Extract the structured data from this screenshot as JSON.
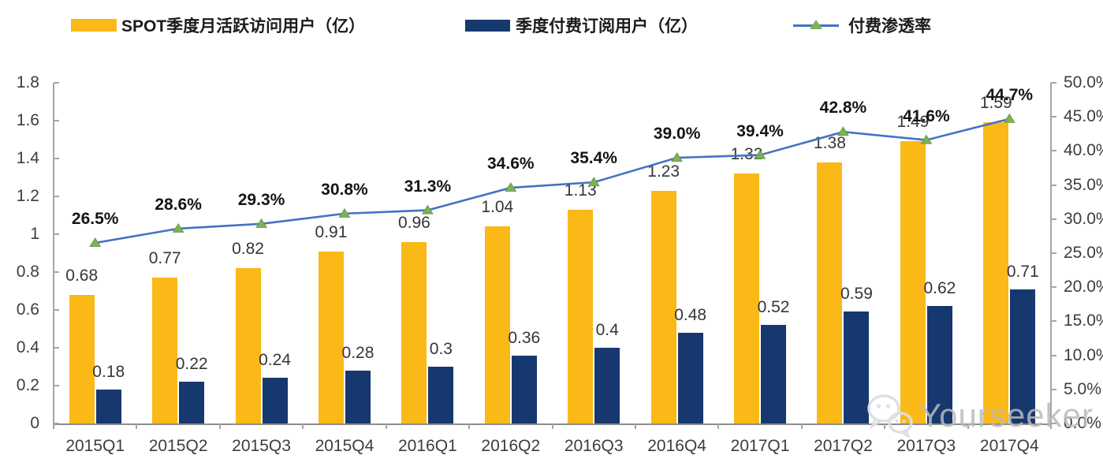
{
  "legend": {
    "items": [
      {
        "label": "SPOT季度月活跃访问用户（亿）",
        "type": "bar",
        "color": "#FBB917"
      },
      {
        "label": "季度付费订阅用户（亿）",
        "type": "bar",
        "color": "#17386E"
      },
      {
        "label": "付费渗透率",
        "type": "line",
        "color": "#4472C4",
        "marker_color": "#7FB254"
      }
    ]
  },
  "chart_data": {
    "type": "bar",
    "subtype": "combo-bar-line",
    "categories": [
      "2015Q1",
      "2015Q2",
      "2015Q3",
      "2015Q4",
      "2016Q1",
      "2016Q2",
      "2016Q3",
      "2016Q4",
      "2017Q1",
      "2017Q2",
      "2017Q3",
      "2017Q4"
    ],
    "series": [
      {
        "name": "SPOT季度月活跃访问用户（亿）",
        "type": "bar",
        "axis": "left",
        "color": "#FBB917",
        "values": [
          0.68,
          0.77,
          0.82,
          0.91,
          0.96,
          1.04,
          1.13,
          1.23,
          1.32,
          1.38,
          1.49,
          1.59
        ],
        "labels": [
          "0.68",
          "0.77",
          "0.82",
          "0.91",
          "0.96",
          "1.04",
          "1.13",
          "1.23",
          "1.32",
          "1.38",
          "1.49",
          "1.59"
        ]
      },
      {
        "name": "季度付费订阅用户（亿）",
        "type": "bar",
        "axis": "left",
        "color": "#17386E",
        "values": [
          0.18,
          0.22,
          0.24,
          0.28,
          0.3,
          0.36,
          0.4,
          0.48,
          0.52,
          0.59,
          0.62,
          0.71
        ],
        "labels": [
          "0.18",
          "0.22",
          "0.24",
          "0.28",
          "0.3",
          "0.36",
          "0.4",
          "0.48",
          "0.52",
          "0.59",
          "0.62",
          "0.71"
        ]
      },
      {
        "name": "付费渗透率",
        "type": "line",
        "axis": "right",
        "color": "#4472C4",
        "marker_color": "#7FB254",
        "values": [
          26.5,
          28.6,
          29.3,
          30.8,
          31.3,
          34.6,
          35.4,
          39.0,
          39.4,
          42.8,
          41.6,
          44.7
        ],
        "labels": [
          "26.5%",
          "28.6%",
          "29.3%",
          "30.8%",
          "31.3%",
          "34.6%",
          "35.4%",
          "39.0%",
          "39.4%",
          "42.8%",
          "41.6%",
          "44.7%"
        ]
      }
    ],
    "left_axis": {
      "min": 0,
      "max": 1.8,
      "labels": [
        "1.8",
        "1.6",
        "1.4",
        "1.2",
        "1",
        "0.8",
        "0.6",
        "0.4",
        "0.2",
        "0"
      ]
    },
    "right_axis": {
      "min": 0,
      "max": 50,
      "labels": [
        "50.0%",
        "45.0%",
        "40.0%",
        "35.0%",
        "30.0%",
        "25.0%",
        "20.0%",
        "15.0%",
        "10.0%",
        "5.0%",
        "0.0%"
      ]
    },
    "grid": false,
    "legend_position": "top"
  },
  "watermark": {
    "text": "Yourseeker",
    "icon": "wechat-icon"
  }
}
